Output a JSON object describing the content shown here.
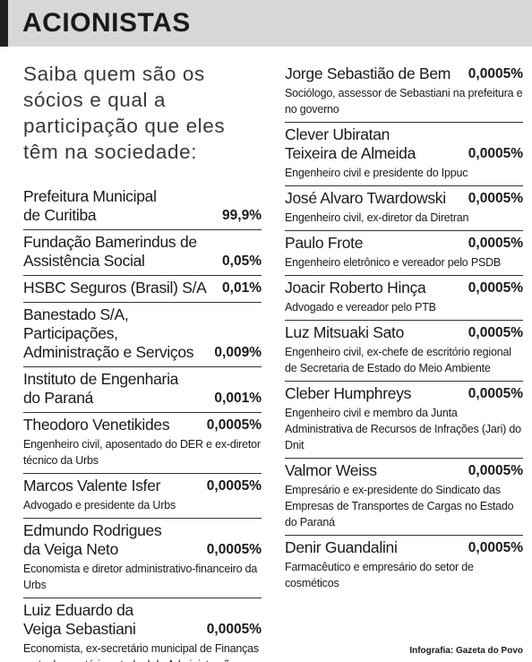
{
  "header": {
    "title": "ACIONISTAS"
  },
  "intro": "Saiba quem são os sócios e qual a participação que eles têm na sociedade:",
  "left": [
    {
      "name": "Prefeitura Municipal\nde Curitiba",
      "share": "99,9%",
      "desc": ""
    },
    {
      "name": "Fundação Bamerindus de\nAssistência Social",
      "share": "0,05%",
      "desc": ""
    },
    {
      "name": "HSBC Seguros (Brasil) S/A",
      "share": "0,01%",
      "desc": ""
    },
    {
      "name": "Banestado S/A, Participações,\nAdministração e Serviços",
      "share": "0,009%",
      "desc": ""
    },
    {
      "name": "Instituto de Engenharia\ndo Paraná",
      "share": "0,001%",
      "desc": ""
    },
    {
      "name": "Theodoro Venetikides",
      "share": "0,0005%",
      "desc": "Engenheiro civil, aposentado do DER e ex-diretor técnico da Urbs"
    },
    {
      "name": "Marcos Valente Isfer",
      "share": "0,0005%",
      "desc": "Advogado e presidente da Urbs"
    },
    {
      "name": "Edmundo Rodrigues\nda Veiga Neto",
      "share": "0,0005%",
      "desc": "Economista e diretor administrativo-financeiro da Urbs"
    },
    {
      "name": "Luiz Eduardo da\nVeiga Sebastiani",
      "share": "0,0005%",
      "desc": "Economista, ex-secretário municipal de Finanças e atual secretário estadual de Administração"
    }
  ],
  "right": [
    {
      "name": "Jorge Sebastião de Bem",
      "share": "0,0005%",
      "desc": "Sociólogo, assessor de Sebastiani na prefeitura e no governo"
    },
    {
      "name": "Clever Ubiratan\nTeixeira de Almeida",
      "share": "0,0005%",
      "desc": "Engenheiro civil e presidente do Ippuc"
    },
    {
      "name": "José Alvaro Twardowski",
      "share": "0,0005%",
      "desc": "Engenheiro civil, ex-diretor da Diretran"
    },
    {
      "name": "Paulo Frote",
      "share": "0,0005%",
      "desc": "Engenheiro eletrônico e vereador pelo PSDB"
    },
    {
      "name": "Joacir Roberto Hinça",
      "share": "0,0005%",
      "desc": "Advogado e vereador pelo PTB"
    },
    {
      "name": "Luz Mitsuaki Sato",
      "share": "0,0005%",
      "desc": "Engenheiro civil, ex-chefe de escritório regional de Secretaria de Estado do Meio Ambiente"
    },
    {
      "name": "Cleber Humphreys",
      "share": "0,0005%",
      "desc": "Engenheiro civil e membro da Junta Administrativa de Recursos de Infrações (Jari) do Dnit"
    },
    {
      "name": "Valmor Weiss",
      "share": "0,0005%",
      "desc": "Empresário e ex-presidente do Sindicato das Empresas de Transportes de Cargas no Estado do Paraná"
    },
    {
      "name": "Denir Guandalini",
      "share": "0,0005%",
      "desc": "Farmacêutico e empresário do setor de cosméticos"
    }
  ],
  "credit": {
    "label": "Infografia:",
    "source": "Gazeta do Povo"
  }
}
